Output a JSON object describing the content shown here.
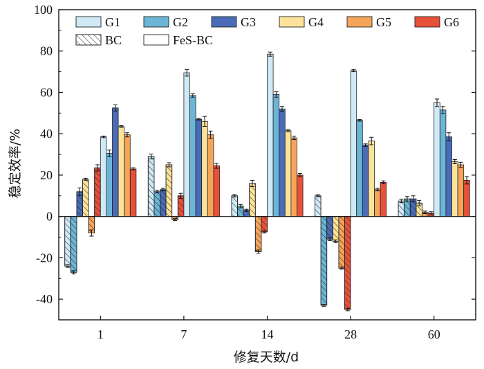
{
  "chart_data": {
    "type": "bar",
    "xlabel": "修复天数/d",
    "ylabel": "稳定效率/%",
    "ylim": [
      -50,
      100
    ],
    "yticks": [
      -40,
      -20,
      0,
      20,
      40,
      60,
      80,
      100
    ],
    "grid": false,
    "legend_position": "top-left",
    "categories": [
      "1",
      "7",
      "14",
      "28",
      "60"
    ],
    "groups": [
      "G1",
      "G2",
      "G3",
      "G4",
      "G5",
      "G6"
    ],
    "group_colors": [
      "#cfe9f5",
      "#6bb6d6",
      "#4a6cb8",
      "#fde39a",
      "#f5a55a",
      "#e8503a"
    ],
    "materials": [
      "BC",
      "FeS-BC"
    ],
    "series": [
      {
        "name": "G1",
        "material": "BC",
        "color": "#cfe9f5",
        "values": [
          -24,
          29,
          10,
          10,
          7.5
        ],
        "errors": [
          0.6,
          1.2,
          0.6,
          0.5,
          0.8
        ]
      },
      {
        "name": "G2",
        "material": "BC",
        "color": "#6bb6d6",
        "values": [
          -27,
          12,
          5,
          -43,
          8.5
        ],
        "errors": [
          0.8,
          0.6,
          0.8,
          0.5,
          1.2
        ]
      },
      {
        "name": "G3",
        "material": "BC",
        "color": "#4a6cb8",
        "values": [
          12,
          13,
          3,
          -11,
          8.5
        ],
        "errors": [
          1.8,
          0.6,
          0.5,
          0.6,
          1.5
        ]
      },
      {
        "name": "G4",
        "material": "BC",
        "color": "#fde39a",
        "values": [
          18,
          25,
          16,
          -12,
          6.5
        ],
        "errors": [
          0.5,
          1.0,
          1.5,
          0.6,
          1.3
        ]
      },
      {
        "name": "G5",
        "material": "BC",
        "color": "#f5a55a",
        "values": [
          -8,
          -1.5,
          -17,
          -25,
          2
        ],
        "errors": [
          1.5,
          0.5,
          0.8,
          0.5,
          0.6
        ]
      },
      {
        "name": "G6",
        "material": "BC",
        "color": "#e8503a",
        "values": [
          23.5,
          10,
          -7.5,
          -45,
          1.5
        ],
        "errors": [
          1.5,
          1.2,
          0.5,
          0.6,
          0.8
        ]
      },
      {
        "name": "G1",
        "material": "FeS-BC",
        "color": "#cfe9f5",
        "values": [
          38.5,
          69.5,
          78.5,
          70.5,
          55
        ],
        "errors": [
          0.4,
          1.6,
          1.0,
          0.5,
          1.8
        ]
      },
      {
        "name": "G2",
        "material": "FeS-BC",
        "color": "#6bb6d6",
        "values": [
          30.5,
          58.5,
          59,
          46.5,
          51.5
        ],
        "errors": [
          1.6,
          0.8,
          1.3,
          0.4,
          1.7
        ]
      },
      {
        "name": "G3",
        "material": "FeS-BC",
        "color": "#4a6cb8",
        "values": [
          52.5,
          47,
          52,
          34.5,
          38.5
        ],
        "errors": [
          1.5,
          0.4,
          1.2,
          0.6,
          2.0
        ]
      },
      {
        "name": "G4",
        "material": "FeS-BC",
        "color": "#fde39a",
        "values": [
          43.5,
          46,
          41.5,
          36.5,
          26.5
        ],
        "errors": [
          0.4,
          2.4,
          0.6,
          1.8,
          1.0
        ]
      },
      {
        "name": "G5",
        "material": "FeS-BC",
        "color": "#f5a55a",
        "values": [
          39.5,
          39.5,
          38,
          13,
          25
        ],
        "errors": [
          1.0,
          1.8,
          0.8,
          0.6,
          1.2
        ]
      },
      {
        "name": "G6",
        "material": "FeS-BC",
        "color": "#e8503a",
        "values": [
          23,
          24.5,
          20,
          16.5,
          17.5
        ],
        "errors": [
          0.5,
          1.2,
          0.8,
          0.7,
          1.8
        ]
      }
    ]
  }
}
